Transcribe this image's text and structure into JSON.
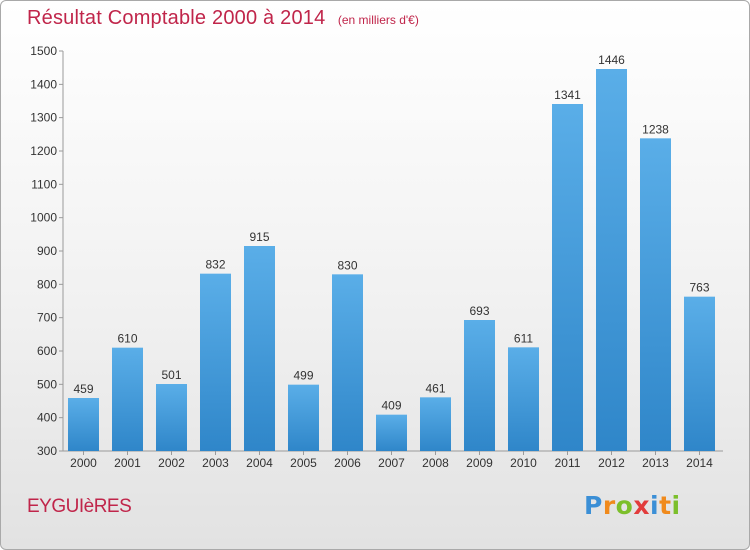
{
  "page": {
    "title": "Résultat Comptable 2000 à 2014",
    "subtitle": "(en milliers d'€)",
    "commune": "EYGUIèRES",
    "brand": [
      "P",
      "r",
      "o",
      "x",
      "i",
      "t",
      "i"
    ]
  },
  "colors": {
    "title": "#c0254a",
    "bar_light": "#5aaee8",
    "bar_dark": "#2f86c9",
    "brand_letters": [
      "#3b8fd6",
      "#f08a1c",
      "#7cbf2b",
      "#e23c3c",
      "#3b8fd6",
      "#f08a1c",
      "#7cbf2b"
    ]
  },
  "chart_data": {
    "type": "bar",
    "title": "Résultat Comptable 2000 à 2014",
    "subtitle": "(en milliers d'€)",
    "categories": [
      "2000",
      "2001",
      "2002",
      "2003",
      "2004",
      "2005",
      "2006",
      "2007",
      "2008",
      "2009",
      "2010",
      "2011",
      "2012",
      "2013",
      "2014"
    ],
    "values": [
      459,
      610,
      501,
      832,
      915,
      499,
      830,
      409,
      461,
      693,
      611,
      1341,
      1446,
      1238,
      763
    ],
    "ylim": [
      300,
      1500
    ],
    "yticks": [
      300,
      400,
      500,
      600,
      700,
      800,
      900,
      1000,
      1100,
      1200,
      1300,
      1400,
      1500
    ],
    "grid": false,
    "data_labels": true,
    "legend": "none"
  }
}
